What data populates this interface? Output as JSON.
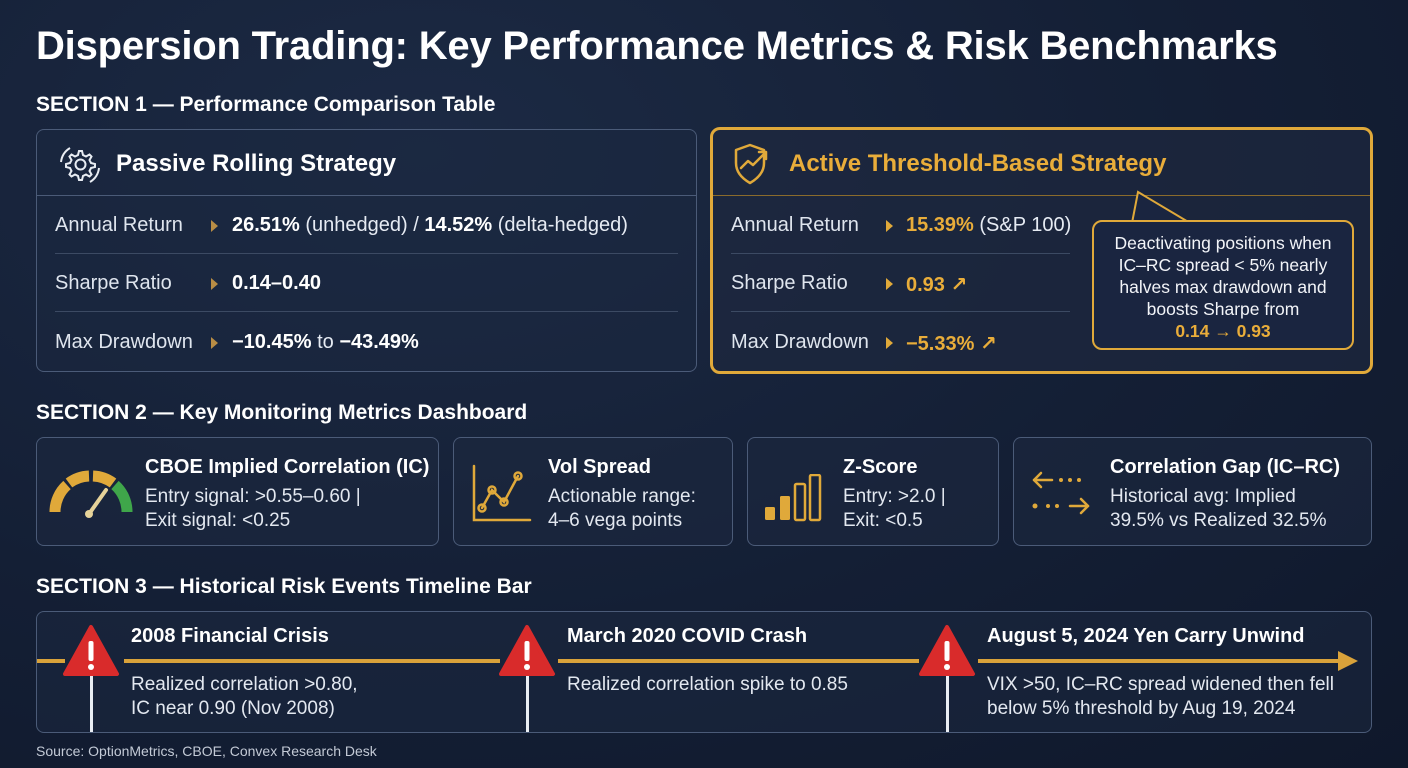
{
  "title": "Dispersion Trading: Key Performance Metrics & Risk Benchmarks",
  "section1": {
    "heading": "SECTION 1 — Performance Comparison Table",
    "passive": {
      "title": "Passive Rolling Strategy",
      "icon": "gear-refresh-icon",
      "rows": [
        {
          "label": "Annual Return",
          "v1": "26.51%",
          "v2": " (unhedged) / ",
          "v3": "14.52%",
          "v4": " (delta-hedged)"
        },
        {
          "label": "Sharpe Ratio",
          "v1": "0.14–0.40"
        },
        {
          "label": "Max Drawdown",
          "v1": "−10.45%",
          "v2": " to ",
          "v3": "−43.49%"
        }
      ]
    },
    "active": {
      "title": "Active Threshold-Based Strategy",
      "icon": "shield-trend-icon",
      "rows": [
        {
          "label": "Annual Return",
          "v1": "15.39%",
          "v2": " (S&P 100)"
        },
        {
          "label": "Sharpe Ratio",
          "v1": "0.93 ↗"
        },
        {
          "label": "Max Drawdown",
          "v1": "−5.33% ↗"
        }
      ],
      "callout": {
        "lines": [
          "Deactivating positions when",
          "IC–RC spread < 5% nearly",
          "halves max drawdown and",
          "boosts Sharpe from"
        ],
        "highlight": "0.14 → 0.93"
      }
    }
  },
  "section2": {
    "heading": "SECTION 2 — Key Monitoring Metrics Dashboard",
    "cards": [
      {
        "title": "CBOE Implied Correlation (IC)",
        "line1": "Entry signal: >0.55–0.60 |",
        "line2": "Exit signal: <0.25",
        "icon": "gauge-icon"
      },
      {
        "title": "Vol Spread",
        "line1": "Actionable range:",
        "line2": "4–6 vega points",
        "icon": "line-chart-icon"
      },
      {
        "title": "Z-Score",
        "line1": "Entry: >2.0 |",
        "line2": "Exit: <0.5",
        "icon": "bar-chart-icon"
      },
      {
        "title": "Correlation Gap (IC–RC)",
        "line1": "Historical avg: Implied",
        "line2": "39.5% vs Realized 32.5%",
        "icon": "exchange-arrows-icon"
      }
    ]
  },
  "section3": {
    "heading": "SECTION 3 — Historical Risk Events Timeline Bar",
    "events": [
      {
        "title": "2008 Financial Crisis",
        "line1": "Realized correlation >0.80,",
        "line2": "IC near 0.90 (Nov 2008)"
      },
      {
        "title": "March 2020 COVID Crash",
        "line1": "Realized correlation spike to 0.85",
        "line2": ""
      },
      {
        "title": "August 5, 2024 Yen Carry Unwind",
        "line1": "VIX >50, IC–RC spread widened then fell",
        "line2": "below 5% threshold by Aug 19, 2024"
      }
    ]
  },
  "source": "Source: OptionMetrics, CBOE, Convex Research Desk",
  "colors": {
    "accent": "#e0a93a",
    "background": "#141f35",
    "warning": "#d92b2b"
  }
}
